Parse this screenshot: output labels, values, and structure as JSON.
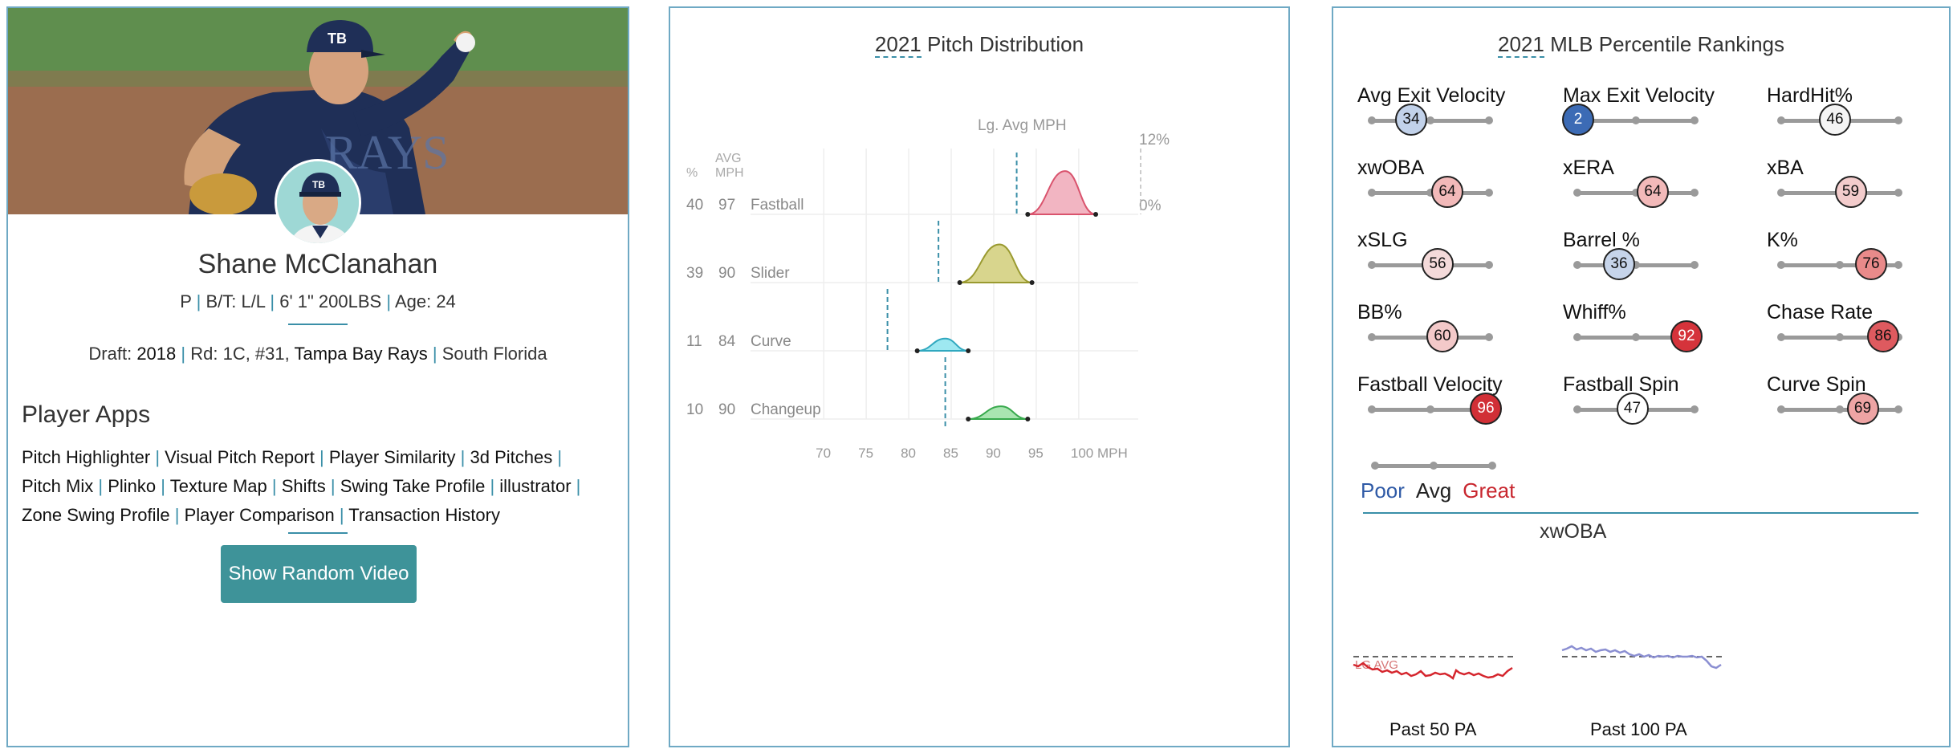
{
  "player": {
    "name": "Shane McClanahan",
    "info": {
      "position": "P",
      "bt": "B/T: L/L",
      "size": "6' 1\" 200LBS",
      "age": "Age: 24"
    },
    "draft": {
      "prefix": "Draft:",
      "year": "2018",
      "round": "Rd: 1C, #31,",
      "team": "Tampa Bay Rays",
      "school": "South Florida"
    },
    "cap_logo": "TB"
  },
  "apps": {
    "title": "Player Apps",
    "links": [
      "Pitch Highlighter",
      "Visual Pitch Report",
      "Player Similarity",
      "3d Pitches",
      "Pitch Mix",
      "Plinko",
      "Texture Map",
      "Shifts",
      "Swing Take Profile",
      "illustrator",
      "Zone Swing Profile",
      "Player Comparison",
      "Transaction History"
    ],
    "button": "Show Random Video"
  },
  "pitch_panel": {
    "title_year": "2021",
    "title_rest": " Pitch Distribution",
    "lg_avg_label": "Lg. Avg MPH",
    "col_pct": "%",
    "col_avg": "AVG",
    "col_mph": "MPH",
    "pct_top": "12%",
    "pct_bottom": "0%"
  },
  "chart_data": {
    "type": "area",
    "title": "2021 Pitch Distribution",
    "xlabel": "MPH",
    "x_ticks": [
      "70",
      "75",
      "80",
      "85",
      "90",
      "95",
      "100 MPH"
    ],
    "xlim": [
      68,
      107
    ],
    "ylim": [
      0,
      12
    ],
    "series": [
      {
        "name": "Fastball",
        "pct": 40,
        "avg_mph": 97,
        "lg_avg": 92.7,
        "min": 94,
        "max": 102,
        "peak": 8.5,
        "color": "#d9536d",
        "fill": "#f2b5c2"
      },
      {
        "name": "Slider",
        "pct": 39,
        "avg_mph": 90,
        "lg_avg": 83.5,
        "min": 86,
        "max": 94.5,
        "peak": 7.5,
        "color": "#9a9a30",
        "fill": "#d8d58d"
      },
      {
        "name": "Curve",
        "pct": 11,
        "avg_mph": 84,
        "lg_avg": 77.5,
        "min": 81,
        "max": 87,
        "peak": 2.4,
        "color": "#30a8bf",
        "fill": "#9ee8f1"
      },
      {
        "name": "Changeup",
        "pct": 10,
        "avg_mph": 90,
        "lg_avg": 84.3,
        "min": 87,
        "max": 94,
        "peak": 2.5,
        "color": "#38a94d",
        "fill": "#a9e5b1"
      }
    ]
  },
  "rank_panel": {
    "title_year": "2021",
    "title_rest": " MLB Percentile Rankings",
    "metrics": [
      {
        "label": "Avg Exit Velocity",
        "value": 34,
        "color": "#c2d2ea"
      },
      {
        "label": "Max Exit Velocity",
        "value": 2,
        "color": "#3c6bb5",
        "text_color": "#ffffff"
      },
      {
        "label": "HardHit%",
        "value": 46,
        "color": "#f4f4f4"
      },
      {
        "label": "xwOBA",
        "value": 64,
        "color": "#f2b9b9"
      },
      {
        "label": "xERA",
        "value": 64,
        "color": "#f2b9b9"
      },
      {
        "label": "xBA",
        "value": 59,
        "color": "#f3cccc"
      },
      {
        "label": "xSLG",
        "value": 56,
        "color": "#f4dada"
      },
      {
        "label": "Barrel %",
        "value": 36,
        "color": "#c6d4ea"
      },
      {
        "label": "K%",
        "value": 76,
        "color": "#e98a8a"
      },
      {
        "label": "BB%",
        "value": 60,
        "color": "#f3c9c9"
      },
      {
        "label": "Whiff%",
        "value": 92,
        "color": "#d5333b",
        "text_color": "#ffffff"
      },
      {
        "label": "Chase Rate",
        "value": 86,
        "color": "#de5a5f"
      },
      {
        "label": "Fastball Velocity",
        "value": 96,
        "color": "#d12f36",
        "text_color": "#ffffff"
      },
      {
        "label": "Fastball Spin",
        "value": 47,
        "color": "#ffffff"
      },
      {
        "label": "Curve Spin",
        "value": 69,
        "color": "#eea4a4"
      }
    ],
    "legend": {
      "poor": "Poor",
      "avg": "Avg",
      "great": "Great",
      "poor_color": "#2f5aa6",
      "great_color": "#c8262e"
    },
    "xwoba_title": "xwOBA",
    "lg_avg_label": "LG AVG",
    "spark_labels": [
      "Past 50 PA",
      "Past 100 PA"
    ]
  }
}
